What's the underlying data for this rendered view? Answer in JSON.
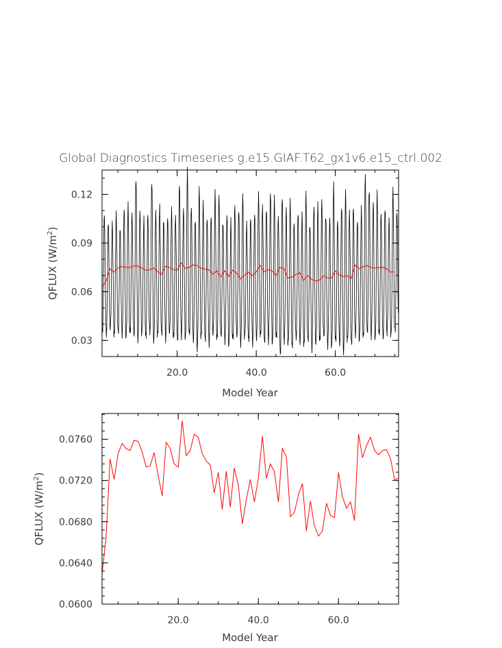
{
  "chart_data": [
    {
      "type": "line",
      "title": "Global Diagnostics Timeseries g.e15.GIAF.T62_gx1v6.e15_ctrl.002",
      "xlabel": "Model Year",
      "ylabel_main": "QFLUX (W/m",
      "ylabel_sup": "2",
      "ylabel_close": ")",
      "xlim": [
        1,
        76
      ],
      "ylim": [
        0.02,
        0.135
      ],
      "xticks": [
        20,
        40,
        60
      ],
      "xtick_labels": [
        "20.0",
        "40.0",
        "60.0"
      ],
      "yticks": [
        0.03,
        0.06,
        0.09,
        0.12
      ],
      "ytick_labels": [
        "0.03",
        "0.06",
        "0.09",
        "0.12"
      ],
      "monthly_color": "#000000",
      "annual_color": "#ff0000",
      "monthly_cycle": {
        "points_per_year": 12,
        "min_month_values": [
          0.036,
          0.034,
          0.038,
          0.033,
          0.035,
          0.034,
          0.032,
          0.035,
          0.033,
          0.031,
          0.034,
          0.032,
          0.035,
          0.03,
          0.033,
          0.034,
          0.031,
          0.035,
          0.032,
          0.03,
          0.033,
          0.031,
          0.034,
          0.03,
          0.025,
          0.032,
          0.03,
          0.028,
          0.034,
          0.031,
          0.033,
          0.03,
          0.027,
          0.031,
          0.033,
          0.028,
          0.032,
          0.03,
          0.028,
          0.031,
          0.033,
          0.029,
          0.03,
          0.028,
          0.032,
          0.022,
          0.03,
          0.028,
          0.026,
          0.032,
          0.029,
          0.027,
          0.03,
          0.025,
          0.028,
          0.03,
          0.033,
          0.027,
          0.026,
          0.03,
          0.028,
          0.023,
          0.03,
          0.028,
          0.034,
          0.03,
          0.032,
          0.035,
          0.033,
          0.031,
          0.034,
          0.032,
          0.035,
          0.033,
          0.036
        ],
        "max_month_values": [
          0.108,
          0.104,
          0.102,
          0.108,
          0.1,
          0.112,
          0.113,
          0.108,
          0.131,
          0.11,
          0.104,
          0.108,
          0.129,
          0.109,
          0.112,
          0.105,
          0.107,
          0.11,
          0.106,
          0.128,
          0.112,
          0.134,
          0.112,
          0.106,
          0.124,
          0.114,
          0.106,
          0.108,
          0.121,
          0.118,
          0.104,
          0.108,
          0.103,
          0.113,
          0.112,
          0.12,
          0.101,
          0.106,
          0.11,
          0.12,
          0.112,
          0.112,
          0.122,
          0.117,
          0.106,
          0.12,
          0.112,
          0.115,
          0.103,
          0.11,
          0.108,
          0.12,
          0.102,
          0.114,
          0.113,
          0.116,
          0.108,
          0.106,
          0.125,
          0.104,
          0.114,
          0.122,
          0.108,
          0.113,
          0.105,
          0.111,
          0.131,
          0.124,
          0.116,
          0.12,
          0.108,
          0.113,
          0.105,
          0.122,
          0.11
        ]
      },
      "series": [
        {
          "x": [
            1,
            2,
            3,
            4,
            5,
            6,
            7,
            8,
            9,
            10,
            11,
            12,
            13,
            14,
            15,
            16,
            17,
            18,
            19,
            20,
            21,
            22,
            23,
            24,
            25,
            26,
            27,
            28,
            29,
            30,
            31,
            32,
            33,
            34,
            35,
            36,
            37,
            38,
            39,
            40,
            41,
            42,
            43,
            44,
            45,
            46,
            47,
            48,
            49,
            50,
            51,
            52,
            53,
            54,
            55,
            56,
            57,
            58,
            59,
            60,
            61,
            62,
            63,
            64,
            65,
            66,
            67,
            68,
            69,
            70,
            71,
            72,
            73,
            74,
            75
          ],
          "values": [
            0.0629,
            0.0665,
            0.0741,
            0.0721,
            0.0746,
            0.0756,
            0.0751,
            0.0749,
            0.0759,
            0.0758,
            0.0748,
            0.0733,
            0.0734,
            0.0747,
            0.0725,
            0.0705,
            0.0757,
            0.0751,
            0.0736,
            0.0733,
            0.0778,
            0.0744,
            0.0749,
            0.0765,
            0.0762,
            0.0746,
            0.0739,
            0.0735,
            0.0708,
            0.0728,
            0.0692,
            0.0729,
            0.0694,
            0.0732,
            0.0716,
            0.0678,
            0.0701,
            0.0721,
            0.0699,
            0.0722,
            0.0763,
            0.0722,
            0.0736,
            0.0729,
            0.0699,
            0.0751,
            0.0743,
            0.0685,
            0.0689,
            0.0706,
            0.0717,
            0.0671,
            0.07,
            0.0676,
            0.0666,
            0.0671,
            0.0698,
            0.0686,
            0.0684,
            0.0728,
            0.0704,
            0.0693,
            0.0699,
            0.0681,
            0.0765,
            0.0742,
            0.0754,
            0.0762,
            0.0749,
            0.0745,
            0.0749,
            0.075,
            0.0741,
            0.0721,
            0.0722
          ]
        }
      ]
    },
    {
      "type": "line",
      "title": "",
      "xlabel": "Model Year",
      "ylabel_main": "QFLUX (W/m",
      "ylabel_sup": "2",
      "ylabel_close": ")",
      "xlim": [
        1,
        75
      ],
      "ylim": [
        0.06,
        0.0785
      ],
      "xticks": [
        20,
        40,
        60
      ],
      "xtick_labels": [
        "20.0",
        "40.0",
        "60.0"
      ],
      "yticks": [
        0.06,
        0.064,
        0.068,
        0.072,
        0.076
      ],
      "ytick_labels": [
        "0.0600",
        "0.0640",
        "0.0680",
        "0.0720",
        "0.0760"
      ],
      "line_color": "#ff0000",
      "series": [
        {
          "x": [
            1,
            2,
            3,
            4,
            5,
            6,
            7,
            8,
            9,
            10,
            11,
            12,
            13,
            14,
            15,
            16,
            17,
            18,
            19,
            20,
            21,
            22,
            23,
            24,
            25,
            26,
            27,
            28,
            29,
            30,
            31,
            32,
            33,
            34,
            35,
            36,
            37,
            38,
            39,
            40,
            41,
            42,
            43,
            44,
            45,
            46,
            47,
            48,
            49,
            50,
            51,
            52,
            53,
            54,
            55,
            56,
            57,
            58,
            59,
            60,
            61,
            62,
            63,
            64,
            65,
            66,
            67,
            68,
            69,
            70,
            71,
            72,
            73,
            74,
            75
          ],
          "values": [
            0.0629,
            0.0665,
            0.0741,
            0.0721,
            0.0746,
            0.0756,
            0.0751,
            0.0749,
            0.0759,
            0.0758,
            0.0748,
            0.0733,
            0.0734,
            0.0747,
            0.0725,
            0.0705,
            0.0757,
            0.0751,
            0.0736,
            0.0733,
            0.0778,
            0.0744,
            0.0749,
            0.0765,
            0.0762,
            0.0746,
            0.0739,
            0.0735,
            0.0708,
            0.0728,
            0.0692,
            0.0729,
            0.0694,
            0.0732,
            0.0716,
            0.0678,
            0.0701,
            0.0721,
            0.0699,
            0.0722,
            0.0763,
            0.0722,
            0.0736,
            0.0729,
            0.0699,
            0.0751,
            0.0743,
            0.0685,
            0.0689,
            0.0706,
            0.0717,
            0.0671,
            0.07,
            0.0676,
            0.0666,
            0.0671,
            0.0698,
            0.0686,
            0.0684,
            0.0728,
            0.0704,
            0.0693,
            0.0699,
            0.0681,
            0.0765,
            0.0742,
            0.0754,
            0.0762,
            0.0749,
            0.0745,
            0.0749,
            0.075,
            0.0741,
            0.0721,
            0.0722
          ]
        }
      ]
    }
  ]
}
